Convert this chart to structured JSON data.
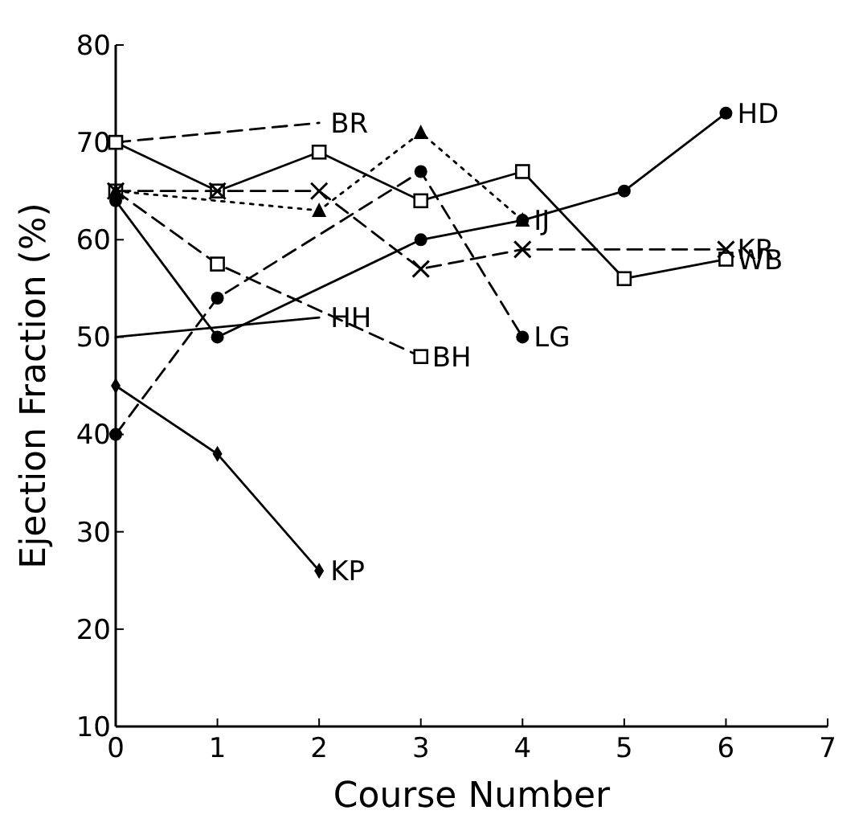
{
  "chart_data": {
    "type": "line",
    "xlabel": "Course Number",
    "ylabel": "Ejection Fraction (%)",
    "xlim": [
      0,
      7
    ],
    "xticks": [
      0,
      1,
      2,
      3,
      4,
      5,
      6,
      7
    ],
    "ylim": [
      10,
      80
    ],
    "yticks": [
      10,
      20,
      30,
      40,
      50,
      60,
      70,
      80
    ],
    "grid": false,
    "legend": false,
    "series": [
      {
        "name": "BR",
        "color": "#000000",
        "x": [
          0,
          2
        ],
        "values": [
          70,
          72
        ],
        "line_style": "dashed"
      },
      {
        "name": "WB",
        "color": "#000000",
        "x": [
          0,
          1,
          2,
          3,
          4,
          5,
          6
        ],
        "values": [
          70,
          65,
          69,
          64,
          67,
          56,
          58
        ],
        "line_style": "solid",
        "marker": "square"
      },
      {
        "name": "BH",
        "color": "#000000",
        "x": [
          0,
          1,
          3
        ],
        "values": [
          65,
          57.5,
          48
        ],
        "line_style": "dashed",
        "marker": "square"
      },
      {
        "name": "KR",
        "color": "#000000",
        "x": [
          0,
          1,
          2,
          3,
          4,
          6
        ],
        "values": [
          65,
          65,
          65,
          57,
          59,
          59
        ],
        "line_style": "dashed",
        "marker": "cross"
      },
      {
        "name": "IJ",
        "color": "#000000",
        "x": [
          0,
          2,
          3,
          4
        ],
        "values": [
          65,
          63,
          71,
          62
        ],
        "line_style": "dotted",
        "marker": "triangle"
      },
      {
        "name": "HD",
        "color": "#000000",
        "x": [
          0,
          1,
          3,
          4,
          5,
          6
        ],
        "values": [
          64,
          50,
          60,
          62,
          65,
          73
        ],
        "line_style": "solid",
        "marker": "circle"
      },
      {
        "name": "HH",
        "color": "#000000",
        "x": [
          0,
          2
        ],
        "values": [
          50,
          52
        ],
        "line_style": "solid",
        "marker": "none"
      },
      {
        "name": "LG",
        "color": "#000000",
        "x": [
          0,
          1,
          3,
          4
        ],
        "values": [
          40,
          54,
          67,
          50
        ],
        "line_style": "dashed",
        "marker": "circle"
      },
      {
        "name": "KP",
        "color": "#000000",
        "x": [
          0,
          1,
          2
        ],
        "values": [
          45,
          38,
          26
        ],
        "line_style": "solid",
        "marker": "diamond"
      }
    ]
  }
}
